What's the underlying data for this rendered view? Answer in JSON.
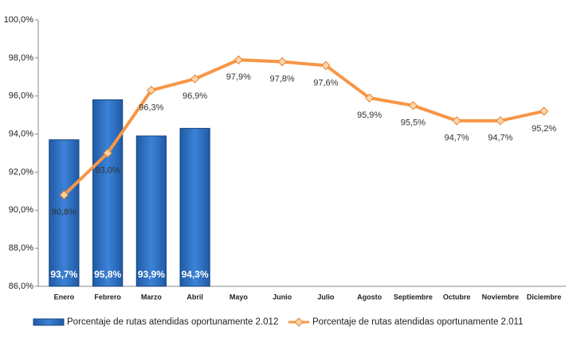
{
  "chart_data": {
    "type": "bar",
    "categories": [
      "Enero",
      "Febrero",
      "Marzo",
      "Abril",
      "Mayo",
      "Junio",
      "Julio",
      "Agosto",
      "Septiembre",
      "Octubre",
      "Noviembre",
      "Diciembre"
    ],
    "series": [
      {
        "name": "Porcentaje de rutas atendidas oportunamente 2.012",
        "type": "bar",
        "color": "#2e6dbd",
        "values": [
          93.7,
          95.8,
          93.9,
          94.3,
          null,
          null,
          null,
          null,
          null,
          null,
          null,
          null
        ],
        "value_labels": [
          "93,7%",
          "95,8%",
          "93,9%",
          "94,3%",
          null,
          null,
          null,
          null,
          null,
          null,
          null,
          null
        ]
      },
      {
        "name": "Porcentaje de rutas atendidas oportunamente 2.011",
        "type": "line",
        "color": "#f79646",
        "values": [
          90.8,
          93.0,
          96.3,
          96.9,
          97.9,
          97.8,
          97.6,
          95.9,
          95.5,
          94.7,
          94.7,
          95.2
        ],
        "value_labels": [
          "90,8%",
          "93,0%",
          "96,3%",
          "96,9%",
          "97,9%",
          "97,8%",
          "97,6%",
          "95,9%",
          "95,5%",
          "94,7%",
          "94,7%",
          "95,2%"
        ]
      }
    ],
    "ylim": [
      86,
      100
    ],
    "yticks": [
      {
        "value": 86,
        "label": "86,0%"
      },
      {
        "value": 88,
        "label": "88,0%"
      },
      {
        "value": 90,
        "label": "90,0%"
      },
      {
        "value": 92,
        "label": "92,0%"
      },
      {
        "value": 94,
        "label": "94,0%"
      },
      {
        "value": 96,
        "label": "96,0%"
      },
      {
        "value": 98,
        "label": "98,0%"
      },
      {
        "value": 100,
        "label": "100,0%"
      }
    ],
    "legend": "bottom"
  }
}
